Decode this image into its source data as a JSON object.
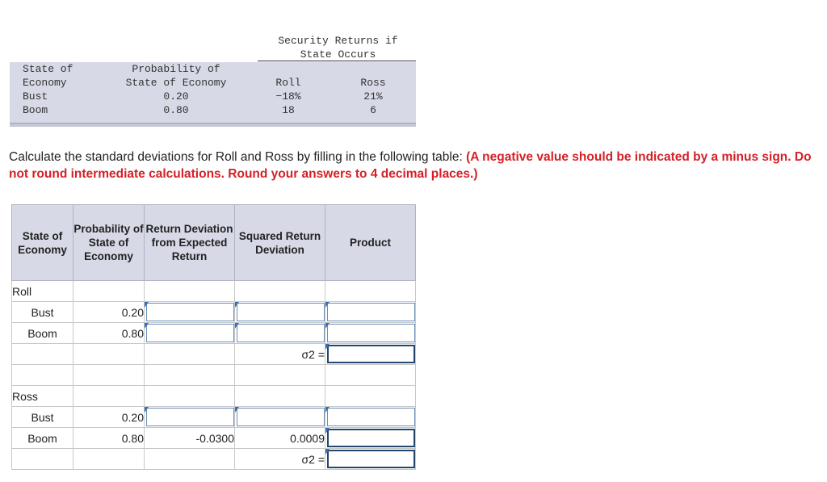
{
  "given_table": {
    "header_security": "Security Returns if",
    "header_state_occurs": "State Occurs",
    "col_state_line1": "State of",
    "col_state_line2": "Economy",
    "col_prob_line1": "Probability of",
    "col_prob_line2": "State of Economy",
    "col_roll": "Roll",
    "col_ross": "Ross",
    "rows": [
      {
        "state": "Bust",
        "prob": "0.20",
        "roll": "−18%",
        "ross": "21%"
      },
      {
        "state": "Boom",
        "prob": "0.80",
        "roll": "18",
        "ross": "6"
      }
    ]
  },
  "instructions": {
    "text": "Calculate the standard deviations for Roll and Ross by filling in the following table: ",
    "requirement": "(A negative value should be indicated by a minus sign. Do not round intermediate calculations. Round your answers to 4 decimal places.)"
  },
  "answer_table": {
    "headers": {
      "state": "State of Economy",
      "prob": "Probability of State of Economy",
      "dev": "Return Deviation from Expected Return",
      "sq": "Squared Return Deviation",
      "prod": "Product"
    },
    "sigma_label": "σ2 =",
    "roll": {
      "label": "Roll",
      "rows": [
        {
          "state": "Bust",
          "prob": "0.20"
        },
        {
          "state": "Boom",
          "prob": "0.80"
        }
      ]
    },
    "ross": {
      "label": "Ross",
      "rows": [
        {
          "state": "Bust",
          "prob": "0.20"
        },
        {
          "state": "Boom",
          "prob": "0.80",
          "dev": "-0.0300",
          "sq": "0.0009"
        }
      ]
    }
  }
}
